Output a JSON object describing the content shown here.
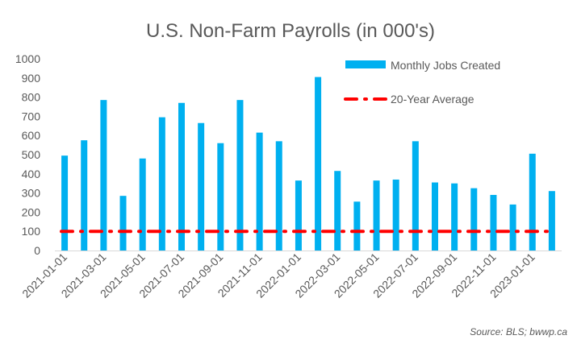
{
  "chart_data": {
    "type": "bar",
    "title": "U.S. Non-Farm Payrolls (in 000's)",
    "xlabel": "",
    "ylabel": "",
    "ylim": [
      0,
      1000
    ],
    "yticks": [
      0,
      100,
      200,
      300,
      400,
      500,
      600,
      700,
      800,
      900,
      1000
    ],
    "categories": [
      "2021-01-01",
      "2021-02-01",
      "2021-03-01",
      "2021-04-01",
      "2021-05-01",
      "2021-06-01",
      "2021-07-01",
      "2021-08-01",
      "2021-09-01",
      "2021-10-01",
      "2021-11-01",
      "2021-12-01",
      "2022-01-01",
      "2022-02-01",
      "2022-03-01",
      "2022-04-01",
      "2022-05-01",
      "2022-06-01",
      "2022-07-01",
      "2022-08-01",
      "2022-09-01",
      "2022-10-01",
      "2022-11-01",
      "2022-12-01",
      "2023-01-01",
      "2023-02-01"
    ],
    "xtick_labels": [
      "2021-01-01",
      "2021-03-01",
      "2021-05-01",
      "2021-07-01",
      "2021-09-01",
      "2021-11-01",
      "2022-01-01",
      "2022-03-01",
      "2022-05-01",
      "2022-07-01",
      "2022-09-01",
      "2022-11-01",
      "2023-01-01"
    ],
    "series": [
      {
        "name": "Monthly Jobs Created",
        "type": "bar",
        "color": "#00B0F0",
        "values": [
          495,
          575,
          785,
          285,
          480,
          695,
          770,
          665,
          560,
          785,
          615,
          570,
          365,
          905,
          415,
          255,
          365,
          370,
          570,
          355,
          350,
          325,
          290,
          240,
          505,
          310
        ]
      },
      {
        "name": "20-Year Average",
        "type": "line",
        "style": "dash-dot",
        "color": "#FF0000",
        "value": 100
      }
    ],
    "legend": "top-right",
    "grid": false,
    "source": "Source: BLS; bwwp.ca"
  }
}
